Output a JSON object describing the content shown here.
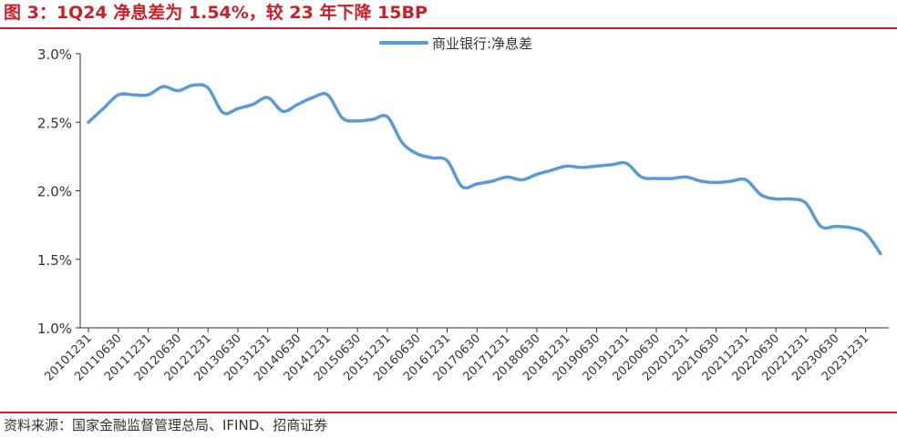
{
  "header": {
    "title": "图 3：1Q24 净息差为 1.54%，较 23 年下降 15BP"
  },
  "footer": {
    "source": "资料来源：国家金融监督管理总局、IFIND、招商证券"
  },
  "colors": {
    "accent": "#c8202a",
    "series": "#5b9bd5",
    "axis": "#333333"
  },
  "chart_data": {
    "type": "line",
    "title": "图 3：1Q24 净息差为 1.54%，较 23 年下降 15BP",
    "xlabel": "",
    "ylabel": "",
    "ylim": [
      1.0,
      3.0
    ],
    "yticks": [
      "3.0%",
      "2.5%",
      "2.0%",
      "1.5%",
      "1.0%"
    ],
    "ytick_values": [
      3.0,
      2.5,
      2.0,
      1.5,
      1.0
    ],
    "legend_position": "top-center",
    "grid": false,
    "x_tick_labels": [
      "20101231",
      "20110630",
      "20111231",
      "20120630",
      "20121231",
      "20130630",
      "20131231",
      "20140630",
      "20141231",
      "20150630",
      "20151231",
      "20160630",
      "20161231",
      "20170630",
      "20171231",
      "20180630",
      "20181231",
      "20190630",
      "20191231",
      "20200630",
      "20201231",
      "20210630",
      "20211231",
      "20220630",
      "20221231",
      "20230630",
      "20231231"
    ],
    "x": [
      "2010Q4",
      "2011Q1",
      "2011Q2",
      "2011Q3",
      "2011Q4",
      "2012Q1",
      "2012Q2",
      "2012Q3",
      "2012Q4",
      "2013Q1",
      "2013Q2",
      "2013Q3",
      "2013Q4",
      "2014Q1",
      "2014Q2",
      "2014Q3",
      "2014Q4",
      "2015Q1",
      "2015Q2",
      "2015Q3",
      "2015Q4",
      "2016Q1",
      "2016Q2",
      "2016Q3",
      "2016Q4",
      "2017Q1",
      "2017Q2",
      "2017Q3",
      "2017Q4",
      "2018Q1",
      "2018Q2",
      "2018Q3",
      "2018Q4",
      "2019Q1",
      "2019Q2",
      "2019Q3",
      "2019Q4",
      "2020Q1",
      "2020Q2",
      "2020Q3",
      "2020Q4",
      "2021Q1",
      "2021Q2",
      "2021Q3",
      "2021Q4",
      "2022Q1",
      "2022Q2",
      "2022Q3",
      "2022Q4",
      "2023Q1",
      "2023Q2",
      "2023Q3",
      "2023Q4",
      "2024Q1"
    ],
    "series": [
      {
        "name": "商业银行:净息差",
        "values": [
          2.5,
          2.6,
          2.7,
          2.7,
          2.7,
          2.76,
          2.73,
          2.77,
          2.75,
          2.57,
          2.6,
          2.63,
          2.68,
          2.58,
          2.63,
          2.68,
          2.7,
          2.53,
          2.51,
          2.52,
          2.54,
          2.35,
          2.27,
          2.24,
          2.22,
          2.03,
          2.05,
          2.07,
          2.1,
          2.08,
          2.12,
          2.15,
          2.18,
          2.17,
          2.18,
          2.19,
          2.2,
          2.1,
          2.09,
          2.09,
          2.1,
          2.07,
          2.06,
          2.07,
          2.08,
          1.97,
          1.94,
          1.94,
          1.91,
          1.74,
          1.74,
          1.73,
          1.69,
          1.54
        ]
      }
    ]
  }
}
